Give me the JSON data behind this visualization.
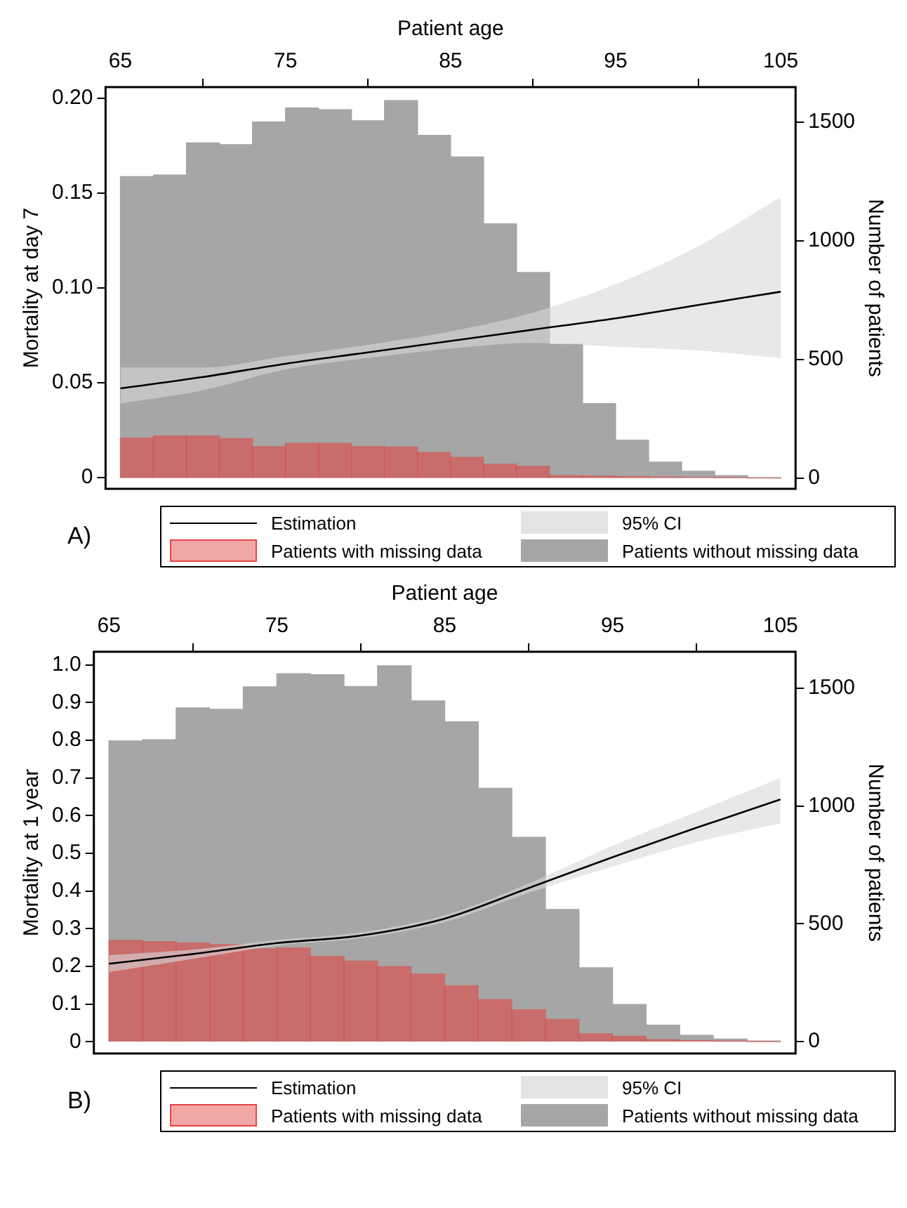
{
  "chart_data": [
    {
      "type": "histogram",
      "xlabel": "Patient age",
      "ylabel": "Mortality at day 7",
      "y2label": "Number of patients",
      "xlim": [
        64.1,
        105.9
      ],
      "xticks": [
        65,
        75,
        85,
        95,
        105
      ],
      "ylim": [
        -0.006,
        0.206
      ],
      "yticks": [
        0,
        0.05,
        {
          "value": 0.1,
          "label": "0.10"
        },
        0.15,
        {
          "value": 0.2,
          "label": "0.20"
        }
      ],
      "y2lim": [
        -45,
        1647
      ],
      "y2ticks": [
        0,
        500,
        1000,
        1500
      ],
      "grid": false,
      "legend": "bottom",
      "annotations": [
        "A)",
        "95% CI"
      ],
      "series": [
        {
          "name": "Estimation",
          "type": "line",
          "color": "#000000",
          "x": [
            65,
            70,
            75,
            80,
            85,
            90,
            95,
            100,
            105
          ],
          "values": [
            0.047,
            0.053,
            0.06,
            0.066,
            0.072,
            0.078,
            0.084,
            0.091,
            0.098
          ],
          "lower": [
            0.039,
            0.046,
            0.057,
            0.063,
            0.068,
            0.071,
            0.069,
            0.067,
            0.063
          ],
          "upper": [
            0.058,
            0.058,
            0.064,
            0.07,
            0.077,
            0.087,
            0.102,
            0.122,
            0.148
          ]
        },
        {
          "name": "Patients with missing data",
          "axis": "y2",
          "color": "#e33c3c",
          "bins": [
            65,
            67,
            69,
            71,
            73,
            75,
            77,
            79,
            81,
            83,
            85,
            87,
            89,
            91,
            93,
            95,
            97,
            99,
            101,
            103,
            105
          ],
          "values": [
            169,
            178,
            178,
            167,
            133,
            147,
            147,
            133,
            131,
            108,
            88,
            59,
            50,
            11,
            9,
            7,
            5,
            3,
            2,
            0
          ]
        },
        {
          "name": "Patients without missing data",
          "axis": "y2",
          "color": "#a6a6a6",
          "bins": [
            65,
            67,
            69,
            71,
            73,
            75,
            77,
            79,
            81,
            83,
            85,
            87,
            89,
            91,
            93,
            95,
            97,
            99,
            101,
            103,
            105
          ],
          "values": [
            1270,
            1277,
            1412,
            1405,
            1500,
            1559,
            1552,
            1505,
            1590,
            1444,
            1353,
            1071,
            866,
            564,
            314,
            160,
            68,
            29,
            11,
            2
          ]
        }
      ]
    },
    {
      "type": "histogram",
      "xlabel": "Patient age",
      "ylabel": "Mortality at 1 year",
      "y2label": "Number of patients",
      "xlim": [
        64.1,
        105.9
      ],
      "xticks": [
        65,
        75,
        85,
        95,
        105
      ],
      "ylim": [
        -0.031,
        1.035
      ],
      "yticks": [
        0,
        0.1,
        0.2,
        0.3,
        0.4,
        0.5,
        0.6,
        0.7,
        0.8,
        0.9,
        {
          "value": 1,
          "label": "1.0"
        }
      ],
      "y2lim": [
        -50,
        1654
      ],
      "y2ticks": [
        0,
        500,
        1000,
        1500
      ],
      "grid": false,
      "legend": "bottom",
      "annotations": [
        "B)",
        "95% CI"
      ],
      "series": [
        {
          "name": "Estimation",
          "type": "line",
          "color": "#000000",
          "x": [
            65,
            70,
            75,
            80,
            85,
            90,
            95,
            100,
            105
          ],
          "values": [
            0.207,
            0.233,
            0.262,
            0.282,
            0.327,
            0.408,
            0.49,
            0.568,
            0.643
          ],
          "lower": [
            0.185,
            0.22,
            0.255,
            0.275,
            0.318,
            0.395,
            0.465,
            0.53,
            0.58
          ],
          "upper": [
            0.23,
            0.245,
            0.27,
            0.29,
            0.336,
            0.42,
            0.52,
            0.61,
            0.7
          ]
        },
        {
          "name": "Patients with missing data",
          "axis": "y2",
          "color": "#e33c3c",
          "bins": [
            65,
            67,
            69,
            71,
            73,
            75,
            77,
            79,
            81,
            83,
            85,
            87,
            89,
            91,
            93,
            95,
            97,
            99,
            101,
            103,
            105
          ],
          "values": [
            430,
            425,
            419,
            412,
            394,
            398,
            362,
            342,
            319,
            287,
            238,
            179,
            136,
            95,
            34,
            23,
            9,
            5,
            2,
            0
          ]
        },
        {
          "name": "Patients without missing data",
          "axis": "y2",
          "color": "#a6a6a6",
          "bins": [
            65,
            67,
            69,
            71,
            73,
            75,
            77,
            79,
            81,
            83,
            85,
            87,
            89,
            91,
            93,
            95,
            97,
            99,
            101,
            103,
            105
          ],
          "values": [
            1276,
            1281,
            1416,
            1410,
            1505,
            1561,
            1557,
            1507,
            1595,
            1446,
            1357,
            1075,
            867,
            561,
            314,
            158,
            70,
            27,
            11,
            2
          ]
        }
      ]
    }
  ]
}
